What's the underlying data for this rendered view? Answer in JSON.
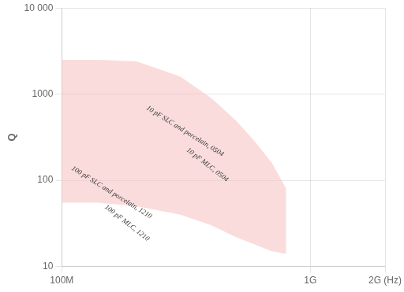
{
  "chart_data": {
    "type": "band",
    "ylabel": "Q",
    "x": [
      100000000.0,
      140000000.0,
      200000000.0,
      300000000.0,
      400000000.0,
      500000000.0,
      600000000.0,
      700000000.0,
      800000000.0
    ],
    "band_top": [
      2500,
      2500,
      2400,
      1600,
      900,
      500,
      280,
      160,
      80
    ],
    "band_bottom": [
      55,
      55,
      50,
      40,
      30,
      22,
      18,
      15,
      14
    ],
    "color": "#f5c0c0",
    "log": true,
    "grid": true,
    "xlim": [
      100000000.0,
      2000000000.0
    ],
    "ylim": [
      10,
      10000
    ],
    "xticks": [
      {
        "value": 100000000.0,
        "label": "100M"
      },
      {
        "value": 1000000000.0,
        "label": "1G"
      },
      {
        "value": 2000000000.0,
        "label": "2G (Hz)"
      }
    ],
    "yticks": [
      10,
      100,
      1000,
      {
        "value": 10000,
        "label": "10 000"
      }
    ],
    "annotations": [
      {
        "text": "10 pF SLC and porcelain, 0504",
        "x": 220000000.0,
        "y": 700
      },
      {
        "text": "10 pF MLC, 0504",
        "x": 320000000.0,
        "y": 230
      },
      {
        "text": "100 pF SLC and porcelain, 1210",
        "x": 110000000.0,
        "y": 140
      },
      {
        "text": "100 pF MLC, 1210",
        "x": 150000000.0,
        "y": 50
      }
    ]
  }
}
